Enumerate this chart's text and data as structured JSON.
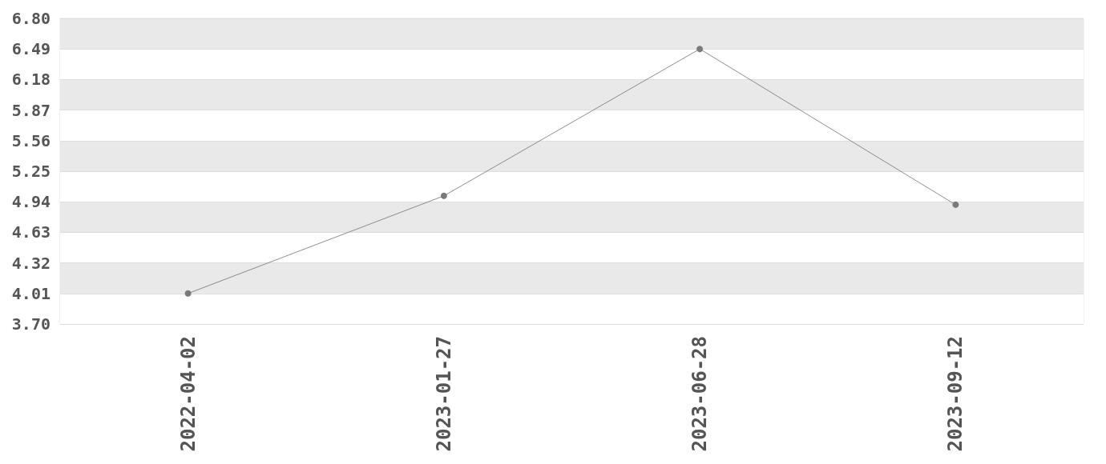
{
  "chart_data": {
    "type": "line",
    "categories": [
      "2022-04-02",
      "2023-01-27",
      "2023-06-28",
      "2023-09-12"
    ],
    "series": [
      {
        "color": "#7a7a7a",
        "values": [
          4.01,
          5.0,
          6.49,
          4.91
        ]
      }
    ],
    "ylim": [
      3.7,
      6.8
    ],
    "yticks": [
      {
        "value": 3.7,
        "label": "3.70"
      },
      4.01,
      4.32,
      4.63,
      4.94,
      5.25,
      5.56,
      5.87,
      6.18,
      6.49,
      {
        "value": 6.8,
        "label": "6.80"
      }
    ],
    "grid": "y",
    "marker": "circle",
    "line_style": "solid"
  }
}
